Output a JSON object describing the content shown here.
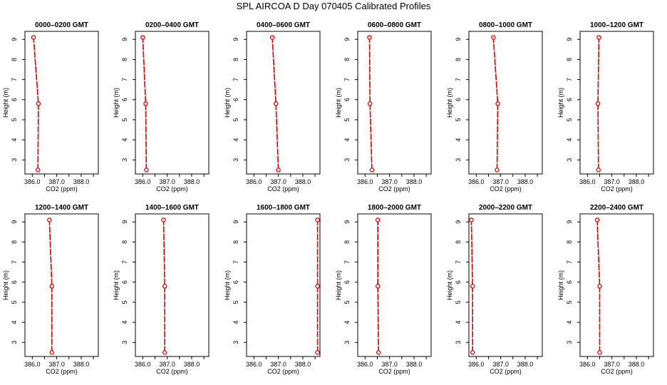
{
  "page": {
    "title": "SPL AIRCOA D  Day 070405  Calibrated Profiles"
  },
  "colors": {
    "series": "#dd0000",
    "axis": "#000000",
    "background": "#ffffff"
  },
  "chart_data": [
    {
      "type": "line",
      "title": "0000–0200 GMT",
      "xlabel": "CO2 (ppm)",
      "ylabel": "Height (m)",
      "xlim": [
        385.7,
        388.7
      ],
      "ylim": [
        2.3,
        9.4
      ],
      "xticks": [
        386.0,
        386.5,
        387.0,
        387.5,
        388.0,
        388.5
      ],
      "xtick_labels": [
        "386.0",
        "",
        "387.0",
        "",
        "388.0",
        ""
      ],
      "yticks": [
        3,
        4,
        5,
        6,
        7,
        8,
        9
      ],
      "ytick_labels": [
        "3",
        "4",
        "5",
        "6",
        "7",
        "8",
        "9"
      ],
      "x": [
        386.23,
        386.25,
        386.05
      ],
      "y": [
        2.5,
        5.8,
        9.1
      ]
    },
    {
      "type": "line",
      "title": "0200–0400 GMT",
      "xlabel": "CO2 (ppm)",
      "ylabel": "Height (m)",
      "xlim": [
        385.7,
        388.7
      ],
      "ylim": [
        2.3,
        9.4
      ],
      "xticks": [
        386.0,
        386.5,
        387.0,
        387.5,
        388.0,
        388.5
      ],
      "xtick_labels": [
        "386.0",
        "",
        "387.0",
        "",
        "388.0",
        ""
      ],
      "yticks": [
        3,
        4,
        5,
        6,
        7,
        8,
        9
      ],
      "ytick_labels": [
        "3",
        "4",
        "5",
        "6",
        "7",
        "8",
        "9"
      ],
      "x": [
        386.15,
        386.12,
        386.0
      ],
      "y": [
        2.5,
        5.8,
        9.1
      ]
    },
    {
      "type": "line",
      "title": "0400–0600 GMT",
      "xlabel": "CO2 (ppm)",
      "ylabel": "Height (m)",
      "xlim": [
        385.7,
        388.7
      ],
      "ylim": [
        2.3,
        9.4
      ],
      "xticks": [
        386.0,
        386.5,
        387.0,
        387.5,
        388.0,
        388.5
      ],
      "xtick_labels": [
        "386.0",
        "",
        "387.0",
        "",
        "388.0",
        ""
      ],
      "yticks": [
        3,
        4,
        5,
        6,
        7,
        8,
        9
      ],
      "ytick_labels": [
        "3",
        "4",
        "5",
        "6",
        "7",
        "8",
        "9"
      ],
      "x": [
        387.0,
        386.9,
        386.75
      ],
      "y": [
        2.5,
        5.8,
        9.1
      ]
    },
    {
      "type": "line",
      "title": "0600–0800 GMT",
      "xlabel": "CO2 (ppm)",
      "ylabel": "Height (m)",
      "xlim": [
        385.7,
        388.7
      ],
      "ylim": [
        2.3,
        9.4
      ],
      "xticks": [
        386.0,
        386.5,
        387.0,
        387.5,
        388.0,
        388.5
      ],
      "xtick_labels": [
        "386.0",
        "",
        "387.0",
        "",
        "388.0",
        ""
      ],
      "yticks": [
        3,
        4,
        5,
        6,
        7,
        8,
        9
      ],
      "ytick_labels": [
        "3",
        "4",
        "5",
        "6",
        "7",
        "8",
        "9"
      ],
      "x": [
        386.28,
        386.2,
        386.18
      ],
      "y": [
        2.5,
        5.8,
        9.1
      ]
    },
    {
      "type": "line",
      "title": "0800–1000 GMT",
      "xlabel": "CO2 (ppm)",
      "ylabel": "Height (m)",
      "xlim": [
        385.7,
        388.7
      ],
      "ylim": [
        2.3,
        9.4
      ],
      "xticks": [
        386.0,
        386.5,
        387.0,
        387.5,
        388.0,
        388.5
      ],
      "xtick_labels": [
        "386.0",
        "",
        "387.0",
        "",
        "388.0",
        ""
      ],
      "yticks": [
        3,
        4,
        5,
        6,
        7,
        8,
        9
      ],
      "ytick_labels": [
        "3",
        "4",
        "5",
        "6",
        "7",
        "8",
        "9"
      ],
      "x": [
        386.85,
        386.88,
        386.7
      ],
      "y": [
        2.5,
        5.8,
        9.1
      ]
    },
    {
      "type": "line",
      "title": "1000–1200 GMT",
      "xlabel": "CO2 (ppm)",
      "ylabel": "Height (m)",
      "xlim": [
        385.7,
        388.7
      ],
      "ylim": [
        2.3,
        9.4
      ],
      "xticks": [
        386.0,
        386.5,
        387.0,
        387.5,
        388.0,
        388.5
      ],
      "xtick_labels": [
        "386.0",
        "",
        "387.0",
        "",
        "388.0",
        ""
      ],
      "yticks": [
        3,
        4,
        5,
        6,
        7,
        8,
        9
      ],
      "ytick_labels": [
        "3",
        "4",
        "5",
        "6",
        "7",
        "8",
        "9"
      ],
      "x": [
        386.45,
        386.43,
        386.47
      ],
      "y": [
        2.5,
        5.8,
        9.1
      ]
    },
    {
      "type": "line",
      "title": "1200–1400 GMT",
      "xlabel": "CO2 (ppm)",
      "ylabel": "Height (m)",
      "xlim": [
        385.7,
        388.7
      ],
      "ylim": [
        2.3,
        9.4
      ],
      "xticks": [
        386.0,
        386.5,
        387.0,
        387.5,
        388.0,
        388.5
      ],
      "xtick_labels": [
        "386.0",
        "",
        "387.0",
        "",
        "388.0",
        ""
      ],
      "yticks": [
        3,
        4,
        5,
        6,
        7,
        8,
        9
      ],
      "ytick_labels": [
        "3",
        "4",
        "5",
        "6",
        "7",
        "8",
        "9"
      ],
      "x": [
        386.8,
        386.8,
        386.7
      ],
      "y": [
        2.5,
        5.8,
        9.1
      ]
    },
    {
      "type": "line",
      "title": "1400–1600 GMT",
      "xlabel": "CO2 (ppm)",
      "ylabel": "Height (m)",
      "xlim": [
        385.7,
        388.7
      ],
      "ylim": [
        2.3,
        9.4
      ],
      "xticks": [
        386.0,
        386.5,
        387.0,
        387.5,
        388.0,
        388.5
      ],
      "xtick_labels": [
        "386.0",
        "",
        "387.0",
        "",
        "388.0",
        ""
      ],
      "yticks": [
        3,
        4,
        5,
        6,
        7,
        8,
        9
      ],
      "ytick_labels": [
        "3",
        "4",
        "5",
        "6",
        "7",
        "8",
        "9"
      ],
      "x": [
        386.9,
        386.9,
        386.85
      ],
      "y": [
        2.5,
        5.8,
        9.1
      ]
    },
    {
      "type": "line",
      "title": "1600–1800 GMT",
      "xlabel": "CO2 (ppm)",
      "ylabel": "Height (m)",
      "xlim": [
        385.7,
        388.7
      ],
      "ylim": [
        2.3,
        9.4
      ],
      "xticks": [
        386.0,
        386.5,
        387.0,
        387.5,
        388.0,
        388.5
      ],
      "xtick_labels": [
        "386.0",
        "",
        "387.0",
        "",
        "388.0",
        ""
      ],
      "yticks": [
        3,
        4,
        5,
        6,
        7,
        8,
        9
      ],
      "ytick_labels": [
        "3",
        "4",
        "5",
        "6",
        "7",
        "8",
        "9"
      ],
      "x": [
        388.6,
        388.6,
        388.6
      ],
      "y": [
        2.5,
        5.8,
        9.1
      ]
    },
    {
      "type": "line",
      "title": "1800–2000 GMT",
      "xlabel": "CO2 (ppm)",
      "ylabel": "Height (m)",
      "xlim": [
        385.7,
        388.7
      ],
      "ylim": [
        2.3,
        9.4
      ],
      "xticks": [
        386.0,
        386.5,
        387.0,
        387.5,
        388.0,
        388.5
      ],
      "xtick_labels": [
        "386.0",
        "",
        "387.0",
        "",
        "388.0",
        ""
      ],
      "yticks": [
        3,
        4,
        5,
        6,
        7,
        8,
        9
      ],
      "ytick_labels": [
        "3",
        "4",
        "5",
        "6",
        "7",
        "8",
        "9"
      ],
      "x": [
        386.55,
        386.52,
        386.52
      ],
      "y": [
        2.5,
        5.8,
        9.1
      ]
    },
    {
      "type": "line",
      "title": "2000–2200 GMT",
      "xlabel": "CO2 (ppm)",
      "ylabel": "Height (m)",
      "xlim": [
        385.7,
        388.7
      ],
      "ylim": [
        2.3,
        9.4
      ],
      "xticks": [
        386.0,
        386.5,
        387.0,
        387.5,
        388.0,
        388.5
      ],
      "xtick_labels": [
        "386.0",
        "",
        "387.0",
        "",
        "388.0",
        ""
      ],
      "yticks": [
        3,
        4,
        5,
        6,
        7,
        8,
        9
      ],
      "ytick_labels": [
        "3",
        "4",
        "5",
        "6",
        "7",
        "8",
        "9"
      ],
      "x": [
        385.85,
        385.85,
        385.8
      ],
      "y": [
        2.5,
        5.8,
        9.1
      ]
    },
    {
      "type": "line",
      "title": "2200–2400 GMT",
      "xlabel": "CO2 (ppm)",
      "ylabel": "Height (m)",
      "xlim": [
        385.7,
        388.7
      ],
      "ylim": [
        2.3,
        9.4
      ],
      "xticks": [
        386.0,
        386.5,
        387.0,
        387.5,
        388.0,
        388.5
      ],
      "xtick_labels": [
        "386.0",
        "",
        "387.0",
        "",
        "388.0",
        ""
      ],
      "yticks": [
        3,
        4,
        5,
        6,
        7,
        8,
        9
      ],
      "ytick_labels": [
        "3",
        "4",
        "5",
        "6",
        "7",
        "8",
        "9"
      ],
      "x": [
        386.5,
        386.5,
        386.4
      ],
      "y": [
        2.5,
        5.8,
        9.1
      ]
    }
  ]
}
